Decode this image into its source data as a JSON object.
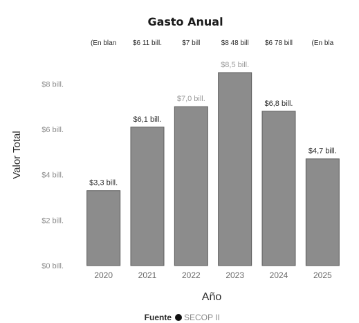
{
  "chart_data": {
    "type": "bar",
    "title": "Gasto Anual",
    "xlabel": "Año",
    "ylabel": "Valor Total",
    "categories": [
      "2020",
      "2021",
      "2022",
      "2023",
      "2024",
      "2025"
    ],
    "values": [
      3.3,
      6.1,
      7.0,
      8.5,
      6.8,
      4.7
    ],
    "data_labels": [
      "$3,3 bill.",
      "$6,1 bill.",
      "$7,0 bill.",
      "$8,5 bill.",
      "$6,8 bill.",
      "$4,7 bill."
    ],
    "top_labels": [
      "(En blan",
      "$6 11 bill.",
      "$7 bill",
      "$8 48 bill",
      "$6 78 bill",
      "(En bla"
    ],
    "yticks": [
      0,
      2,
      4,
      6,
      8
    ],
    "ytick_labels": [
      "$0 bill.",
      "$2 bill.",
      "$4 bill.",
      "$6 bill.",
      "$8 bill."
    ],
    "ylim": [
      0,
      9.2
    ],
    "grid": false,
    "legend": {
      "title": "Fuente",
      "placement": "bottom-center",
      "items": [
        {
          "name": "SECOP II",
          "color": "#111111"
        }
      ]
    },
    "colors": {
      "bar_fill": "#8c8c8c",
      "bar_stroke": "#5c5c5c",
      "label_dark": "#2a2a2a",
      "label_light": "#9a9a9a"
    }
  }
}
